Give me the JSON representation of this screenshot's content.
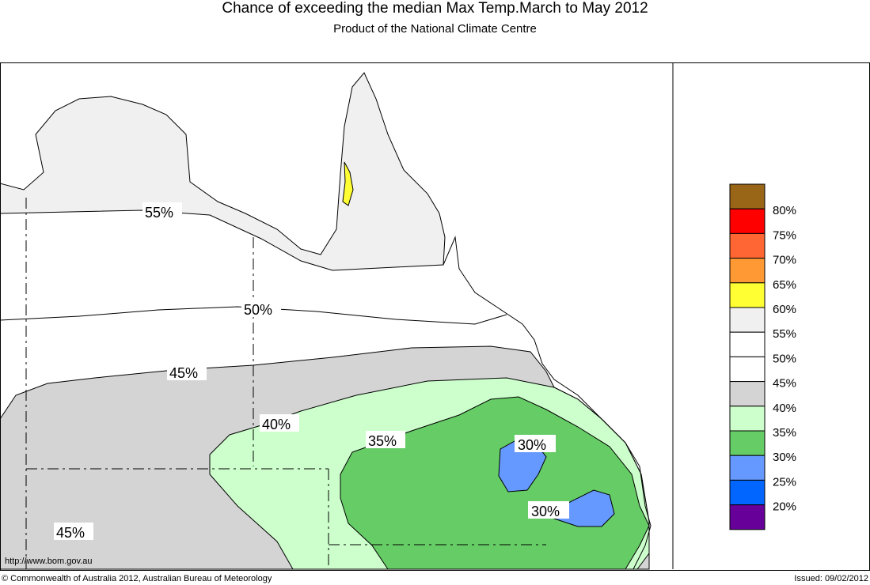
{
  "header": {
    "title": "Chance of exceeding the median Max Temp.March to May 2012",
    "subtitle": "Product of the National Climate Centre"
  },
  "map": {
    "contour_labels": [
      "55%",
      "50%",
      "45%",
      "40%",
      "35%",
      "30%",
      "30%",
      "45%"
    ],
    "url": "http://www.bom.gov.au",
    "colors": {
      "55-60": "#f0f0f0",
      "40-45": "#d4d4d4",
      "35-40": "#ccffcc",
      "30-35": "#66cc66",
      "25-30": "#6699ff",
      "60-65": "#ffff33"
    }
  },
  "legend": {
    "colors": [
      "#996618",
      "#ff0000",
      "#ff6633",
      "#ff9933",
      "#ffff33",
      "#f0f0f0",
      "#ffffff",
      "#ffffff",
      "#d4d4d4",
      "#ccffcc",
      "#66cc66",
      "#6699ff",
      "#0066ff",
      "#660099"
    ],
    "labels": [
      "80%",
      "75%",
      "70%",
      "65%",
      "60%",
      "55%",
      "50%",
      "45%",
      "40%",
      "35%",
      "30%",
      "25%",
      "20%"
    ]
  },
  "footer": {
    "copyright": "© Commonwealth of Australia 2012, Australian Bureau of Meteorology",
    "issued": "Issued: 09/02/2012"
  }
}
